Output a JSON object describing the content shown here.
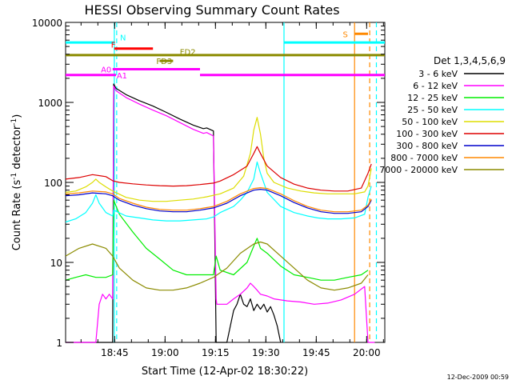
{
  "chart_data": {
    "type": "line",
    "title": "HESSI Observing Summary Count Rates",
    "xlabel": "Start Time (12-Apr-02 18:30:22)",
    "ylabel": "Count Rate (s",
    "ylabel_sup": "-1",
    "ylabel_tail": " detector",
    "ylabel_sup2": "-1",
    "ylabel_end": ")",
    "x_unit": "minutes since 18:30:22",
    "xlim": [
      0,
      95
    ],
    "ylim": [
      1,
      10000
    ],
    "yscale": "log",
    "x_ticks": [
      {
        "v": 14.6,
        "label": "18:45"
      },
      {
        "v": 29.6,
        "label": "19:00"
      },
      {
        "v": 44.6,
        "label": "19:15"
      },
      {
        "v": 59.6,
        "label": "19:30"
      },
      {
        "v": 74.6,
        "label": "19:45"
      },
      {
        "v": 89.6,
        "label": "20:00"
      }
    ],
    "y_ticks": [
      {
        "v": 1,
        "label": "1"
      },
      {
        "v": 10,
        "label": "10"
      },
      {
        "v": 100,
        "label": "100"
      },
      {
        "v": 1000,
        "label": "1000"
      },
      {
        "v": 10000,
        "label": "10000"
      }
    ],
    "legend_title": "Det 1,3,4,5,6,9",
    "legend_position": "right",
    "series": [
      {
        "name": "3 - 6 keV",
        "color": "#000000",
        "x": [
          0,
          14,
          14.3,
          15,
          18,
          22,
          26,
          30,
          34,
          38,
          41,
          42,
          44,
          44.8,
          45,
          48,
          50,
          51,
          52,
          53,
          54,
          55,
          56,
          57,
          58,
          59,
          60,
          61,
          62,
          63,
          64
        ],
        "y": [
          1,
          1,
          1700,
          1500,
          1250,
          1050,
          900,
          750,
          620,
          520,
          470,
          480,
          440,
          1,
          1,
          1,
          2.5,
          3,
          4,
          3,
          2.8,
          3.5,
          2.5,
          3,
          2.6,
          3,
          2.4,
          2.8,
          2.2,
          1.6,
          1
        ]
      },
      {
        "name": "6 - 12 keV",
        "color": "#ff00ff",
        "x": [
          0,
          9,
          10,
          11,
          12,
          13,
          14,
          14.3,
          15,
          18,
          22,
          26,
          30,
          34,
          38,
          41,
          42,
          44,
          44.8,
          45,
          48,
          50,
          52,
          54,
          55,
          56,
          57,
          58,
          60,
          62,
          66,
          70,
          74,
          78,
          82,
          86,
          89,
          90,
          92
        ],
        "y": [
          1,
          1,
          3,
          4,
          3.5,
          4,
          3.5,
          1600,
          1400,
          1150,
          950,
          800,
          680,
          560,
          460,
          410,
          420,
          380,
          3.5,
          3,
          3,
          3.5,
          4,
          4.8,
          5.5,
          5,
          4.5,
          4,
          3.8,
          3.5,
          3.3,
          3.2,
          3,
          3.1,
          3.4,
          4,
          5,
          1,
          1
        ]
      },
      {
        "name": "12 - 25 keV",
        "color": "#00ee00",
        "x": [
          0,
          3,
          6,
          9,
          12,
          14,
          14.3,
          16,
          20,
          24,
          28,
          32,
          36,
          40,
          44,
          44.8,
          46,
          50,
          54,
          56,
          57,
          58,
          60,
          64,
          68,
          72,
          76,
          80,
          84,
          88,
          90
        ],
        "y": [
          6,
          6.5,
          7,
          6.5,
          6.5,
          7,
          60,
          40,
          24,
          15,
          11,
          8,
          7,
          7,
          7,
          12,
          8,
          7,
          10,
          16,
          20,
          15,
          13,
          9,
          7,
          6.5,
          6,
          6,
          6.5,
          7,
          8
        ]
      },
      {
        "name": "25 - 50 keV",
        "color": "#00ffff",
        "x": [
          0,
          3,
          6,
          8,
          9,
          10,
          12,
          14,
          14.3,
          18,
          22,
          26,
          30,
          34,
          38,
          42,
          44,
          46,
          50,
          52,
          54,
          56,
          57,
          58,
          60,
          64,
          68,
          72,
          75,
          78,
          82,
          86,
          89,
          90,
          91
        ],
        "y": [
          32,
          35,
          42,
          55,
          70,
          55,
          42,
          38,
          45,
          38,
          36,
          34,
          33,
          33,
          34,
          35,
          37,
          42,
          50,
          60,
          75,
          110,
          180,
          130,
          75,
          50,
          42,
          38,
          36,
          35,
          35,
          36,
          40,
          65,
          90
        ]
      },
      {
        "name": "50 - 100 keV",
        "color": "#dddd00",
        "x": [
          0,
          3,
          6,
          8,
          9,
          10,
          12,
          14,
          18,
          22,
          26,
          30,
          34,
          38,
          42,
          46,
          50,
          53,
          55,
          56,
          57,
          58,
          59,
          60,
          62,
          66,
          70,
          74,
          78,
          82,
          86,
          89,
          90,
          91
        ],
        "y": [
          75,
          78,
          88,
          100,
          110,
          100,
          88,
          78,
          65,
          60,
          58,
          58,
          60,
          62,
          66,
          72,
          85,
          120,
          230,
          450,
          650,
          400,
          200,
          130,
          100,
          85,
          78,
          74,
          72,
          72,
          72,
          76,
          90,
          150
        ]
      },
      {
        "name": "100 - 300 keV",
        "color": "#dd0000",
        "x": [
          0,
          4,
          8,
          12,
          14,
          16,
          20,
          24,
          28,
          32,
          36,
          40,
          44,
          46,
          50,
          54,
          56,
          57,
          58,
          60,
          64,
          68,
          72,
          76,
          80,
          84,
          88,
          90,
          91
        ],
        "y": [
          110,
          115,
          125,
          118,
          105,
          100,
          96,
          93,
          91,
          90,
          91,
          94,
          98,
          104,
          125,
          160,
          230,
          280,
          230,
          160,
          115,
          95,
          85,
          80,
          78,
          78,
          85,
          130,
          170
        ]
      },
      {
        "name": "300 - 800 keV",
        "color": "#0000cc",
        "x": [
          0,
          4,
          8,
          12,
          14,
          16,
          20,
          24,
          28,
          32,
          36,
          40,
          44,
          48,
          52,
          56,
          58,
          60,
          64,
          68,
          72,
          76,
          80,
          84,
          88,
          90,
          91
        ],
        "y": [
          68,
          70,
          74,
          72,
          68,
          60,
          52,
          47,
          44,
          43,
          43,
          45,
          48,
          55,
          68,
          80,
          82,
          80,
          68,
          56,
          48,
          43,
          41,
          41,
          43,
          50,
          60
        ]
      },
      {
        "name": "800 - 7000 keV",
        "color": "#ff8800",
        "x": [
          0,
          4,
          8,
          12,
          14,
          16,
          20,
          24,
          28,
          32,
          36,
          40,
          44,
          48,
          52,
          56,
          58,
          60,
          64,
          68,
          72,
          76,
          80,
          84,
          88,
          90,
          91
        ],
        "y": [
          72,
          74,
          78,
          76,
          72,
          63,
          55,
          49,
          46,
          45,
          45,
          47,
          50,
          58,
          72,
          84,
          86,
          84,
          72,
          59,
          50,
          45,
          43,
          43,
          45,
          52,
          62
        ]
      },
      {
        "name": "7000 - 20000 keV",
        "color": "#8b8b00",
        "x": [
          0,
          4,
          8,
          12,
          14,
          16,
          20,
          24,
          28,
          32,
          36,
          40,
          44,
          48,
          52,
          56,
          58,
          60,
          64,
          68,
          72,
          76,
          80,
          84,
          88,
          90
        ],
        "y": [
          12,
          15,
          17,
          15,
          12,
          8.5,
          6,
          4.8,
          4.5,
          4.5,
          4.8,
          5.5,
          6.5,
          8.5,
          13,
          17,
          18,
          17,
          12,
          8.5,
          6,
          4.8,
          4.5,
          4.8,
          5.5,
          7
        ]
      }
    ],
    "state_bars": [
      {
        "label": "N",
        "color": "#00ffff",
        "value": 5600,
        "segments": [
          [
            0,
            14.5
          ],
          [
            65,
            95
          ]
        ]
      },
      {
        "label": "F",
        "color": "#ff0000",
        "value": 4700,
        "segments": [
          [
            14.5,
            26
          ]
        ]
      },
      {
        "label": "FD2",
        "color": "#8b8b00",
        "value": 3900,
        "segments": [
          [
            0,
            95
          ]
        ]
      },
      {
        "label": "FD3",
        "color": "#8b8b00",
        "value": 3300,
        "segments": [
          [
            28,
            32
          ]
        ]
      },
      {
        "label": "A0",
        "color": "#ff00ff",
        "value": 2600,
        "segments": [
          [
            14,
            40
          ]
        ]
      },
      {
        "label": "A1",
        "color": "#ff00ff",
        "value": 2200,
        "segments": [
          [
            0,
            15
          ],
          [
            40,
            95
          ]
        ]
      },
      {
        "label": "S",
        "color": "#ff8800",
        "value": 7200,
        "segments": [
          [
            86,
            90
          ]
        ]
      }
    ],
    "state_labels": [
      {
        "text": "N",
        "x": 16.2,
        "y": 6500,
        "color": "#00ffff"
      },
      {
        "text": "F",
        "x": 13.5,
        "y": 5300,
        "color": "#ff0000"
      },
      {
        "text": "FD2",
        "x": 34,
        "y": 4300,
        "color": "#8b8b00"
      },
      {
        "text": "FD3",
        "x": 27,
        "y": 3300,
        "color": "#8b8b00"
      },
      {
        "text": "A0",
        "x": 10.5,
        "y": 2600,
        "color": "#ff00ff"
      },
      {
        "text": "A1",
        "x": 15.2,
        "y": 2200,
        "color": "#ff00ff"
      },
      {
        "text": "S",
        "x": 82.5,
        "y": 7200,
        "color": "#ff8800"
      }
    ],
    "vlines": [
      {
        "x": 14.5,
        "color": "#00ffff",
        "dash": false
      },
      {
        "x": 15.2,
        "color": "#00ffff",
        "dash": true
      },
      {
        "x": 65,
        "color": "#00ffff",
        "dash": false
      },
      {
        "x": 86,
        "color": "#ff8800",
        "dash": false
      },
      {
        "x": 90.5,
        "color": "#ff8800",
        "dash": true
      },
      {
        "x": 92.5,
        "color": "#00ffff",
        "dash": true
      }
    ],
    "footer_date": "12-Dec-2009 00:59"
  }
}
